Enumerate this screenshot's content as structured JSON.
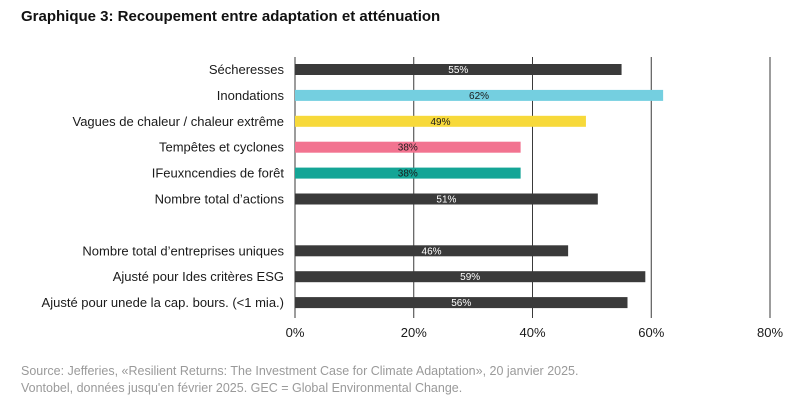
{
  "title": "Graphique 3: Recoupement entre adaptation et atténuation",
  "source_line1": "Source: Jefferies, «Resilient Returns: The Investment Case for Climate Adaptation», 20 janvier 2025.",
  "source_line2": "Vontobel, données jusqu'en février 2025. GEC = Global Environmental Change.",
  "chart_data": {
    "type": "bar",
    "orientation": "horizontal",
    "title": "Graphique 3: Recoupement entre adaptation et atténuation",
    "categories": [
      "Sécheresses",
      "Inondations",
      "Vagues de chaleur / chaleur extrême",
      "Tempêtes et cyclones",
      "IFeuxncendies de forêt",
      "Nombre total d’actions",
      "",
      "Nombre total d’entreprises uniques",
      "Ajusté pour Ides critères ESG",
      "Ajusté pour unede la cap. bours. (<1 mia.)"
    ],
    "values": [
      55,
      62,
      49,
      38,
      38,
      51,
      null,
      46,
      59,
      56
    ],
    "value_labels": [
      "55%",
      "62%",
      "49%",
      "38%",
      "38%",
      "51%",
      "",
      "46%",
      "59%",
      "56%"
    ],
    "colors": [
      "#3a3a3a",
      "#74cfe0",
      "#f7d93a",
      "#f27390",
      "#14a596",
      "#3a3a3a",
      "",
      "#3a3a3a",
      "#3a3a3a",
      "#3a3a3a"
    ],
    "label_colors": [
      "#ffffff",
      "#1a1a1a",
      "#1a1a1a",
      "#1a1a1a",
      "#1a1a1a",
      "#ffffff",
      "",
      "#ffffff",
      "#ffffff",
      "#ffffff"
    ],
    "xlim": [
      0,
      80
    ],
    "xticks": [
      0,
      20,
      40,
      60,
      80
    ],
    "xtick_labels": [
      "0%",
      "20%",
      "40%",
      "60%",
      "80%"
    ],
    "grid": "vertical",
    "legend": "none"
  }
}
